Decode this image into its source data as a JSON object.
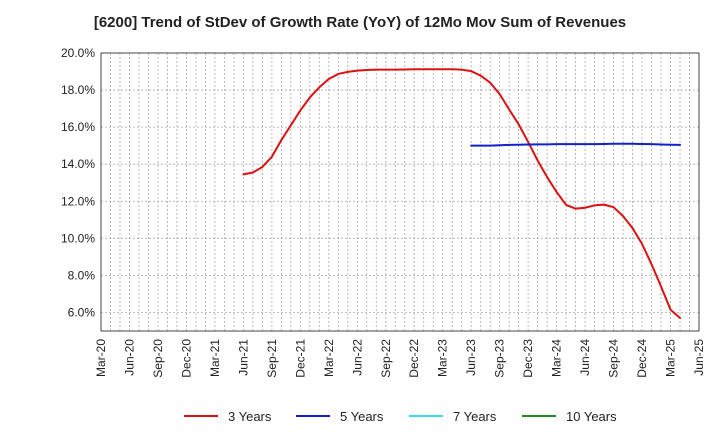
{
  "chart_data": {
    "type": "line",
    "title": "[6200]  Trend of StDev of Growth Rate (YoY) of 12Mo Mov Sum of Revenues",
    "xlabel": "",
    "ylabel": "",
    "ylim": [
      5.0,
      20.0
    ],
    "y_ticks": [
      6.0,
      8.0,
      10.0,
      12.0,
      14.0,
      16.0,
      18.0,
      20.0
    ],
    "y_tick_labels": [
      "6.0%",
      "8.0%",
      "10.0%",
      "12.0%",
      "14.0%",
      "16.0%",
      "18.0%",
      "20.0%"
    ],
    "x_tick_labels": [
      "Mar-20",
      "Jun-20",
      "Sep-20",
      "Dec-20",
      "Mar-21",
      "Jun-21",
      "Sep-21",
      "Dec-21",
      "Mar-22",
      "Jun-22",
      "Sep-22",
      "Dec-22",
      "Mar-23",
      "Jun-23",
      "Sep-23",
      "Dec-23",
      "Mar-24",
      "Jun-24",
      "Sep-24",
      "Dec-24",
      "Mar-25",
      "Jun-25"
    ],
    "grid": true,
    "legend_position": "bottom",
    "series": [
      {
        "name": "3 Years",
        "color": "#dd1111",
        "start_month_index": 15,
        "values": [
          13.45,
          13.55,
          13.85,
          14.4,
          15.3,
          16.1,
          16.9,
          17.6,
          18.15,
          18.6,
          18.87,
          18.98,
          19.05,
          19.08,
          19.1,
          19.1,
          19.1,
          19.11,
          19.12,
          19.12,
          19.12,
          19.12,
          19.12,
          19.1,
          19.02,
          18.78,
          18.4,
          17.78,
          16.95,
          16.15,
          15.2,
          14.2,
          13.3,
          12.5,
          11.8,
          11.6,
          11.65,
          11.78,
          11.82,
          11.68,
          11.2,
          10.55,
          9.7,
          8.6,
          7.4,
          6.15,
          5.7
        ]
      },
      {
        "name": "5 Years",
        "color": "#1122cc",
        "start_month_index": 39,
        "values": [
          15.0,
          15.0,
          15.0,
          15.02,
          15.04,
          15.05,
          15.06,
          15.07,
          15.07,
          15.08,
          15.08,
          15.08,
          15.08,
          15.08,
          15.09,
          15.1,
          15.1,
          15.1,
          15.09,
          15.08,
          15.06,
          15.05,
          15.04
        ]
      },
      {
        "name": "7 Years",
        "color": "#33ddee",
        "start_month_index": 0,
        "values": []
      },
      {
        "name": "10 Years",
        "color": "#228822",
        "start_month_index": 0,
        "values": []
      }
    ]
  }
}
